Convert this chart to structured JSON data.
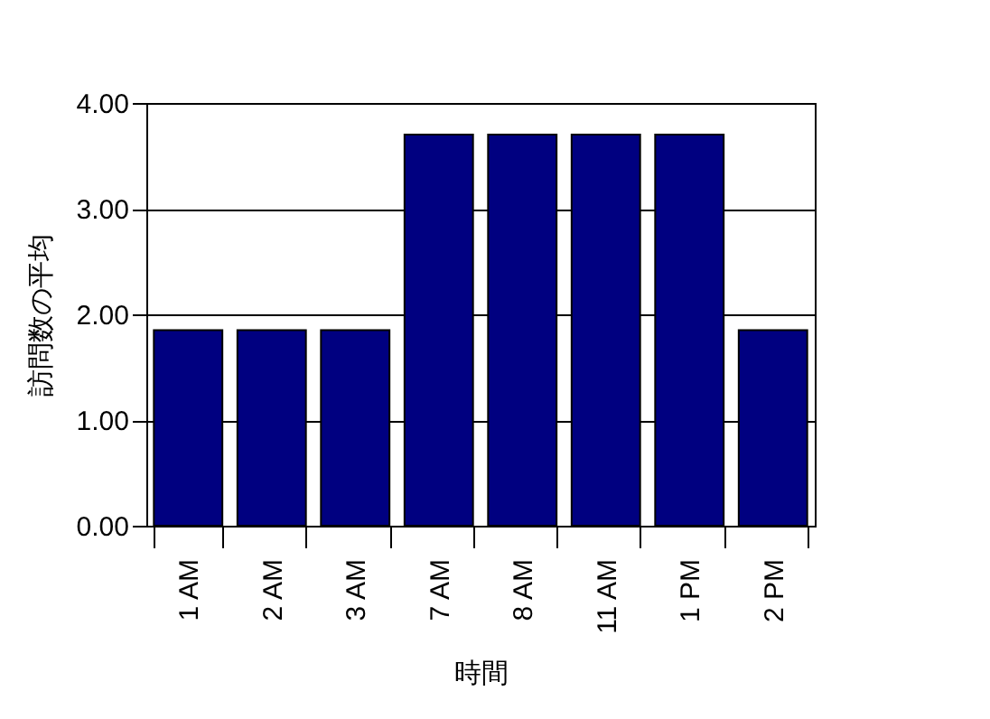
{
  "chart_data": {
    "type": "bar",
    "xlabel": "時間",
    "ylabel": "訪問数の平均",
    "categories": [
      "1 AM",
      "2 AM",
      "3 AM",
      "7 AM",
      "8 AM",
      "11 AM",
      "1 PM",
      "2 PM"
    ],
    "values": [
      1.85,
      1.85,
      1.85,
      3.7,
      3.7,
      3.7,
      3.7,
      1.85
    ],
    "color": "#000080",
    "ylim": [
      0,
      4
    ],
    "yticks": [
      {
        "value": 0,
        "label": "0.00"
      },
      {
        "value": 1,
        "label": "1.00"
      },
      {
        "value": 2,
        "label": "2.00"
      },
      {
        "value": 3,
        "label": "3.00"
      },
      {
        "value": 4,
        "label": "4.00"
      }
    ],
    "grid": "y"
  }
}
